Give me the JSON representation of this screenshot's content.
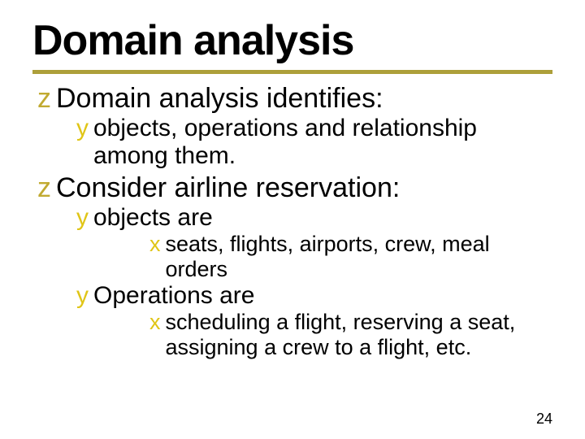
{
  "colors": {
    "z_bullet": "#c1aa31",
    "y_bullet": "#e0c517",
    "x_bullet": "#e0c517",
    "underline": "#ad9f3a",
    "text": "#000000",
    "background": "#ffffff"
  },
  "typography": {
    "title_family": "Arial Black",
    "body_family": "Arial",
    "title_size_pt": 39,
    "l1_size_pt": 26,
    "l2_size_pt": 22,
    "l3_size_pt": 20
  },
  "title": "Domain analysis",
  "bullets": {
    "l1_glyph": "z",
    "l2_glyph": "y",
    "l3_glyph": "x"
  },
  "items": {
    "i1": {
      "text": "Domain analysis identifies:",
      "sub": {
        "s1": {
          "text": "objects, operations and relationship among them."
        }
      }
    },
    "i2": {
      "text": "Consider airline reservation:",
      "sub": {
        "s1": {
          "text": "objects are",
          "sub": {
            "t1": {
              "text": "seats, flights, airports, crew, meal orders"
            }
          }
        },
        "s2": {
          "text": "Operations are",
          "sub": {
            "t1": {
              "text": "scheduling a flight, reserving a seat, assigning a crew to a flight, etc."
            }
          }
        }
      }
    }
  },
  "page_number": "24"
}
